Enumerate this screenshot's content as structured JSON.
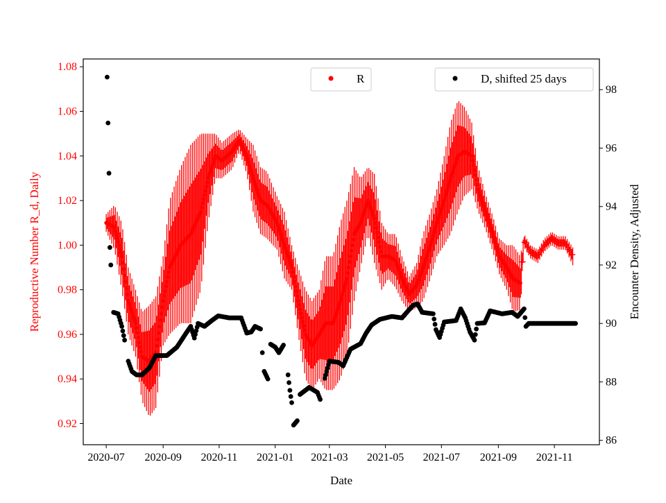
{
  "chart_data": {
    "type": "scatter",
    "xlabel": "Date",
    "ylabel_left": "Reproductive Number R_d, Daily",
    "ylabel_right": "Encounter Density, Adjusted",
    "x_start": "2020-07-01",
    "x_ticks": [
      "2020-07",
      "2020-09",
      "2020-11",
      "2021-01",
      "2021-03",
      "2021-05",
      "2021-07",
      "2021-09",
      "2021-11"
    ],
    "x_tick_days": [
      0,
      62,
      123,
      184,
      243,
      304,
      365,
      427,
      488
    ],
    "xlim_days": [
      -25,
      537
    ],
    "ylim_left": [
      0.9105,
      1.0835
    ],
    "yticks_left": [
      "0.92",
      "0.94",
      "0.96",
      "0.98",
      "1.00",
      "1.02",
      "1.04",
      "1.06",
      "1.08"
    ],
    "ylim_right": [
      85.85,
      99.05
    ],
    "yticks_right": [
      "86",
      "88",
      "90",
      "92",
      "94",
      "96",
      "98"
    ],
    "colors": {
      "R": "#ff0000",
      "D": "#000000",
      "left_axis": "#ff0000"
    },
    "legend": [
      {
        "label": "R",
        "color": "#ff0000",
        "placement": "top-center"
      },
      {
        "label": "D, shifted 25 days",
        "color": "#000000",
        "placement": "top-right"
      }
    ],
    "series": [
      {
        "name": "R",
        "axis": "left",
        "plus_marker_from_day": 452,
        "points_day_value_err": [
          [
            0,
            1.01,
            0.004
          ],
          [
            9,
            1.008,
            0.01
          ],
          [
            17,
            0.995,
            0.015
          ],
          [
            24,
            0.975,
            0.015
          ],
          [
            32,
            0.965,
            0.015
          ],
          [
            39,
            0.95,
            0.02
          ],
          [
            47,
            0.948,
            0.025
          ],
          [
            54,
            0.952,
            0.025
          ],
          [
            62,
            0.975,
            0.02
          ],
          [
            69,
            0.99,
            0.03
          ],
          [
            81,
            1.0,
            0.035
          ],
          [
            92,
            1.005,
            0.04
          ],
          [
            103,
            1.015,
            0.035
          ],
          [
            111,
            1.03,
            0.02
          ],
          [
            119,
            1.04,
            0.01
          ],
          [
            126,
            1.038,
            0.008
          ],
          [
            137,
            1.042,
            0.008
          ],
          [
            145,
            1.047,
            0.005
          ],
          [
            153,
            1.04,
            0.008
          ],
          [
            160,
            1.03,
            0.015
          ],
          [
            168,
            1.02,
            0.015
          ],
          [
            175,
            1.018,
            0.015
          ],
          [
            186,
            1.01,
            0.012
          ],
          [
            194,
            1.0,
            0.015
          ],
          [
            202,
            0.99,
            0.01
          ],
          [
            209,
            0.975,
            0.015
          ],
          [
            217,
            0.96,
            0.02
          ],
          [
            224,
            0.955,
            0.02
          ],
          [
            232,
            0.96,
            0.02
          ],
          [
            239,
            0.965,
            0.03
          ],
          [
            247,
            0.965,
            0.03
          ],
          [
            255,
            0.975,
            0.035
          ],
          [
            262,
            0.985,
            0.035
          ],
          [
            270,
            1.005,
            0.03
          ],
          [
            277,
            1.01,
            0.02
          ],
          [
            285,
            1.02,
            0.015
          ],
          [
            292,
            1.012,
            0.02
          ],
          [
            300,
            0.995,
            0.015
          ],
          [
            307,
            0.995,
            0.01
          ],
          [
            315,
            0.993,
            0.012
          ],
          [
            322,
            0.985,
            0.01
          ],
          [
            330,
            0.978,
            0.008
          ],
          [
            338,
            0.982,
            0.01
          ],
          [
            345,
            0.99,
            0.015
          ],
          [
            353,
            1.0,
            0.015
          ],
          [
            360,
            1.01,
            0.015
          ],
          [
            368,
            1.02,
            0.02
          ],
          [
            375,
            1.03,
            0.025
          ],
          [
            383,
            1.04,
            0.025
          ],
          [
            390,
            1.042,
            0.02
          ],
          [
            398,
            1.04,
            0.015
          ],
          [
            405,
            1.025,
            0.01
          ],
          [
            413,
            1.015,
            0.008
          ],
          [
            421,
            1.005,
            0.008
          ],
          [
            428,
            0.995,
            0.008
          ],
          [
            436,
            0.99,
            0.01
          ],
          [
            443,
            0.985,
            0.015
          ],
          [
            451,
            0.983,
            0.012
          ],
          [
            455,
            1.002,
            0.003
          ],
          [
            462,
            0.997,
            0.003
          ],
          [
            470,
            0.995,
            0.003
          ],
          [
            477,
            1.0,
            0.003
          ],
          [
            485,
            1.003,
            0.003
          ],
          [
            492,
            1.001,
            0.003
          ],
          [
            500,
            1.001,
            0.003
          ],
          [
            508,
            0.995,
            0.004
          ]
        ]
      },
      {
        "name": "D, shifted 25 days",
        "axis": "right",
        "points_day_value": [
          [
            1,
            98.43
          ],
          [
            2,
            96.86
          ],
          [
            3,
            95.14
          ],
          [
            4,
            92.6
          ],
          [
            5,
            92.0
          ],
          [
            8,
            90.38
          ],
          [
            13,
            90.33
          ],
          [
            17,
            89.9
          ],
          [
            20,
            89.43
          ],
          [
            24,
            88.71
          ],
          [
            28,
            88.36
          ],
          [
            33,
            88.24
          ],
          [
            39,
            88.24
          ],
          [
            47,
            88.48
          ],
          [
            54,
            88.9
          ],
          [
            66,
            88.9
          ],
          [
            77,
            89.19
          ],
          [
            87,
            89.67
          ],
          [
            92,
            89.9
          ],
          [
            96,
            89.5
          ],
          [
            100,
            90.0
          ],
          [
            107,
            89.9
          ],
          [
            115,
            90.1
          ],
          [
            122,
            90.26
          ],
          [
            134,
            90.19
          ],
          [
            147,
            90.19
          ],
          [
            153,
            89.67
          ],
          [
            158,
            89.71
          ],
          [
            162,
            89.9
          ],
          [
            168,
            89.81
          ],
          [
            170,
            89.0
          ],
          [
            172,
            88.36
          ],
          [
            176,
            88.1
          ],
          [
            179,
            89.29
          ],
          [
            184,
            89.19
          ],
          [
            188,
            89.0
          ],
          [
            193,
            89.26
          ],
          [
            198,
            88.24
          ],
          [
            200,
            87.71
          ],
          [
            202,
            87.29
          ],
          [
            204,
            86.52
          ],
          [
            208,
            86.67
          ],
          [
            211,
            87.57
          ],
          [
            221,
            87.81
          ],
          [
            230,
            87.64
          ],
          [
            233,
            87.4
          ],
          [
            238,
            88.12
          ],
          [
            243,
            88.71
          ],
          [
            253,
            88.67
          ],
          [
            258,
            88.55
          ],
          [
            266,
            89.12
          ],
          [
            277,
            89.31
          ],
          [
            283,
            89.67
          ],
          [
            289,
            89.95
          ],
          [
            298,
            90.14
          ],
          [
            311,
            90.24
          ],
          [
            322,
            90.19
          ],
          [
            334,
            90.62
          ],
          [
            339,
            90.67
          ],
          [
            344,
            90.38
          ],
          [
            356,
            90.33
          ],
          [
            359,
            89.79
          ],
          [
            363,
            89.52
          ],
          [
            368,
            90.05
          ],
          [
            381,
            90.1
          ],
          [
            386,
            90.5
          ],
          [
            391,
            90.19
          ],
          [
            396,
            89.71
          ],
          [
            401,
            89.43
          ],
          [
            404,
            90.0
          ],
          [
            412,
            90.02
          ],
          [
            418,
            90.43
          ],
          [
            431,
            90.33
          ],
          [
            442,
            90.38
          ],
          [
            448,
            90.24
          ],
          [
            455,
            90.5
          ],
          [
            457,
            89.9
          ],
          [
            460,
            90.0
          ],
          [
            511,
            90.0
          ]
        ]
      }
    ]
  }
}
